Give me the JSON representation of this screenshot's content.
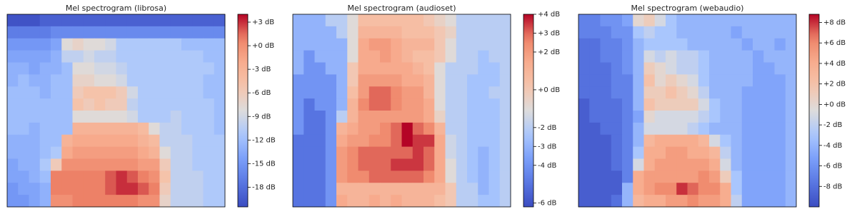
{
  "chart_data": [
    {
      "type": "heatmap",
      "title": "Mel spectrogram (librosa)",
      "colormap": "coolwarm",
      "clim": [
        -20.5,
        4
      ],
      "cticks": [
        {
          "value": 3,
          "label": "+3 dB"
        },
        {
          "value": 0,
          "label": "+0 dB"
        },
        {
          "value": -3,
          "label": "-3 dB"
        },
        {
          "value": -6,
          "label": "-6 dB"
        },
        {
          "value": -9,
          "label": "-9 dB"
        },
        {
          "value": -12,
          "label": "-12 dB"
        },
        {
          "value": -15,
          "label": "-15 dB"
        },
        {
          "value": -18,
          "label": "-18 dB"
        }
      ],
      "z": [
        [
          -20,
          -20,
          -20,
          -19,
          -19,
          -19,
          -19,
          -19,
          -19,
          -19,
          -19,
          -19,
          -19,
          -19,
          -19,
          -19,
          -19,
          -19,
          -19,
          -19
        ],
        [
          -17,
          -17,
          -17,
          -17,
          -16,
          -16,
          -16,
          -16,
          -16,
          -16,
          -16,
          -16,
          -16,
          -16,
          -16,
          -16,
          -16,
          -16,
          -16,
          -16
        ],
        [
          -15,
          -15,
          -15,
          -15,
          -14,
          -8,
          -7,
          -8,
          -8,
          -9,
          -11,
          -11,
          -11,
          -11,
          -11,
          -11,
          -12,
          -12,
          -12,
          -12
        ],
        [
          -14,
          -14,
          -14,
          -14,
          -13,
          -10,
          -10,
          -9,
          -10,
          -10,
          -11,
          -11,
          -11,
          -11,
          -11,
          -11,
          -11,
          -11,
          -12,
          -12
        ],
        [
          -13,
          -13,
          -14,
          -13,
          -13,
          -12,
          -8,
          -8,
          -9,
          -9,
          -10,
          -11,
          -11,
          -11,
          -11,
          -11,
          -11,
          -11,
          -11,
          -12
        ],
        [
          -13,
          -12,
          -13,
          -13,
          -12,
          -12,
          -7,
          -7,
          -8,
          -8,
          -9,
          -11,
          -11,
          -11,
          -11,
          -11,
          -11,
          -11,
          -12,
          -12
        ],
        [
          -12,
          -12,
          -12,
          -13,
          -12,
          -12,
          -6,
          -5,
          -5,
          -5,
          -6,
          -9,
          -11,
          -11,
          -11,
          -11,
          -11,
          -11,
          -12,
          -12
        ],
        [
          -12,
          -12,
          -12,
          -12,
          -12,
          -12,
          -5,
          -6,
          -5,
          -6,
          -6,
          -10,
          -11,
          -11,
          -11,
          -11,
          -11,
          -11,
          -11,
          -12
        ],
        [
          -12,
          -12,
          -12,
          -12,
          -12,
          -12,
          -8,
          -8,
          -8,
          -8,
          -8,
          -9,
          -11,
          -11,
          -11,
          -10,
          -11,
          -11,
          -11,
          -12
        ],
        [
          -12,
          -12,
          -13,
          -12,
          -12,
          -12,
          -3,
          -3,
          -3,
          -3,
          -3,
          -3,
          -4,
          -8,
          -10,
          -10,
          -11,
          -11,
          -11,
          -12
        ],
        [
          -13,
          -13,
          -13,
          -12,
          -12,
          -3,
          -2,
          -2,
          -2,
          -2,
          -2,
          -2,
          -3,
          -4,
          -10,
          -10,
          -10,
          -11,
          -11,
          -11
        ],
        [
          -13,
          -13,
          -13,
          -12,
          -11,
          -2,
          -1,
          -1,
          -1,
          -1,
          -1,
          -1,
          -2,
          -3,
          -8,
          -10,
          -10,
          -11,
          -11,
          -11
        ],
        [
          -14,
          -13,
          -13,
          -11,
          -6,
          0,
          0,
          0,
          0,
          0,
          0,
          0,
          -1,
          -1,
          -6,
          -10,
          -10,
          -11,
          -11,
          -11
        ],
        [
          -14,
          -14,
          -13,
          -12,
          1,
          1,
          1,
          1,
          1,
          2,
          3,
          2,
          1,
          0,
          -5,
          -10,
          -10,
          -10,
          -11,
          -11
        ],
        [
          -15,
          -14,
          -14,
          -13,
          1,
          1,
          1,
          1,
          1,
          2,
          3,
          3,
          2,
          1,
          -6,
          -10,
          -10,
          -10,
          -11,
          -11
        ],
        [
          -15,
          -15,
          -14,
          -13,
          0,
          0,
          1,
          1,
          1,
          1,
          1,
          1,
          0,
          0,
          -7,
          -10,
          -10,
          -10,
          -11,
          -11
        ]
      ]
    },
    {
      "type": "heatmap",
      "title": "Mel spectrogram (audioset)",
      "colormap": "coolwarm",
      "clim": [
        -6.2,
        4
      ],
      "cticks": [
        {
          "value": 4,
          "label": "+4 dB"
        },
        {
          "value": 3,
          "label": "+3 dB"
        },
        {
          "value": 2,
          "label": "+2 dB"
        },
        {
          "value": 0,
          "label": "+0 dB"
        },
        {
          "value": -2,
          "label": "-2 dB"
        },
        {
          "value": -3,
          "label": "-3 dB"
        },
        {
          "value": -4,
          "label": "-4 dB"
        },
        {
          "value": -6,
          "label": "-6 dB"
        }
      ],
      "z": [
        [
          -3,
          -3,
          -3,
          -2,
          -2,
          -1,
          0.5,
          0.5,
          0.5,
          0.5,
          0.5,
          0.5,
          0,
          -0.5,
          -1,
          -2,
          -2,
          -2,
          -2,
          -2
        ],
        [
          -3,
          -3,
          -3,
          -3,
          -2,
          -1,
          1,
          1,
          1,
          1,
          0.5,
          0.5,
          0.5,
          0,
          -0.5,
          -2,
          -2,
          -2,
          -2,
          -2
        ],
        [
          -3,
          -3,
          -3,
          -3,
          -3,
          -1,
          1.5,
          2,
          2,
          1.5,
          1,
          1,
          1,
          0,
          -1,
          -2,
          -2,
          -2,
          -2,
          -2
        ],
        [
          -3,
          -4,
          -3,
          -3,
          -3,
          -1,
          1.5,
          1.5,
          2,
          1.5,
          1,
          0.5,
          0.5,
          0,
          -1,
          -2,
          -2,
          -2.5,
          -2,
          -2
        ],
        [
          -3,
          -4,
          -4,
          -3,
          -3,
          0,
          1.5,
          1.5,
          1.5,
          1.5,
          1.5,
          1,
          0.5,
          -1,
          -2,
          -2,
          -2,
          -2.5,
          -2.5,
          -2
        ],
        [
          -4,
          -4,
          -4,
          -4,
          -3,
          0,
          2,
          2,
          2,
          2,
          1.5,
          1.5,
          1,
          -1,
          -2,
          -2,
          -2.5,
          -2.5,
          -2.5,
          -2
        ],
        [
          -4,
          -4,
          -4,
          -4,
          -3,
          0.5,
          2,
          3,
          3,
          2.5,
          2,
          2,
          1,
          -1,
          -2,
          -2,
          -2.5,
          -2.5,
          -2,
          -2
        ],
        [
          -4,
          -5,
          -4,
          -4,
          -3,
          1,
          2.5,
          3,
          3,
          2.5,
          2,
          2,
          1.5,
          -1,
          -2,
          -2,
          -2.5,
          -2.5,
          -2.5,
          -2
        ],
        [
          -4,
          -5,
          -5,
          -4,
          -2,
          1,
          2,
          2,
          2,
          2,
          2,
          2,
          1.5,
          -0.5,
          -2,
          -2,
          -2.5,
          -2.5,
          -2.5,
          -2
        ],
        [
          -4,
          -5,
          -5,
          -4,
          1,
          1.5,
          2,
          2,
          2.5,
          3,
          4,
          3,
          2.5,
          1,
          -2,
          -2,
          -2.5,
          -2.5,
          -2.5,
          -2
        ],
        [
          -5,
          -5,
          -5,
          -4,
          1.5,
          2,
          2,
          2.5,
          2.5,
          3,
          4,
          3.5,
          3.5,
          1.5,
          -1.5,
          -2,
          -2.5,
          -2.5,
          -2.5,
          -2
        ],
        [
          -5,
          -5,
          -5,
          -4,
          2,
          2.5,
          3,
          3,
          3,
          3,
          3,
          3.5,
          3,
          1.5,
          -1.5,
          -2,
          -2.5,
          -3,
          -2.5,
          -2
        ],
        [
          -5,
          -5,
          -5,
          -4,
          2,
          2.5,
          3,
          3,
          3,
          3.5,
          3.5,
          3.5,
          3,
          1.5,
          -1,
          -2,
          -2.5,
          -3,
          -2.5,
          -2
        ],
        [
          -5,
          -5,
          -5,
          -4,
          2,
          2.5,
          2.5,
          3,
          3,
          3,
          3,
          3,
          2.5,
          1.5,
          -1,
          -2,
          -2.5,
          -3,
          -2.5,
          -2
        ],
        [
          -5,
          -5,
          -5,
          -4,
          1,
          1,
          1,
          1,
          1,
          1,
          1,
          1,
          1,
          1,
          0,
          -2,
          -2,
          -3,
          -2.5,
          -2
        ],
        [
          -5,
          -5,
          -5,
          -4,
          1.5,
          1,
          1,
          1.5,
          1,
          1.5,
          1,
          1,
          1,
          0.5,
          0,
          -2,
          -2,
          -2.5,
          -2.5,
          -2
        ]
      ]
    },
    {
      "type": "heatmap",
      "title": "Mel spectrogram (webaudio)",
      "colormap": "coolwarm",
      "clim": [
        -10,
        8.8
      ],
      "cticks": [
        {
          "value": 8,
          "label": "+8 dB"
        },
        {
          "value": 6,
          "label": "+6 dB"
        },
        {
          "value": 4,
          "label": "+4 dB"
        },
        {
          "value": 2,
          "label": "+2 dB"
        },
        {
          "value": 0,
          "label": "+0 dB"
        },
        {
          "value": -2,
          "label": "-2 dB"
        },
        {
          "value": -4,
          "label": "-4 dB"
        },
        {
          "value": -6,
          "label": "-6 dB"
        },
        {
          "value": -8,
          "label": "-8 dB"
        }
      ],
      "z": [
        [
          -7,
          -7,
          -6,
          -6,
          -5,
          0,
          1,
          -1,
          -3,
          -4,
          -4,
          -4,
          -4,
          -4,
          -4,
          -4,
          -4,
          -4,
          -4,
          -4
        ],
        [
          -7,
          -7,
          -7,
          -6,
          -6,
          -3,
          -2,
          -3,
          -3,
          -4,
          -4,
          -4,
          -4,
          -4,
          -5,
          -4,
          -4,
          -4,
          -4,
          -4
        ],
        [
          -8,
          -8,
          -7,
          -7,
          -6,
          -4,
          -3,
          -3,
          -3,
          -3,
          -4,
          -4,
          -4,
          -4,
          -4,
          -5,
          -4,
          -4,
          -5,
          -4
        ],
        [
          -8,
          -8,
          -7,
          -7,
          -6,
          -4,
          -1,
          -2,
          -1,
          -2,
          -2,
          -3,
          -4,
          -4,
          -4,
          -4,
          -5,
          -4,
          -4,
          -4
        ],
        [
          -8,
          -8,
          -8,
          -7,
          -6,
          -4,
          1,
          0,
          -1,
          -2,
          -2,
          -3,
          -4,
          -4,
          -4,
          -4,
          -5,
          -5,
          -4,
          -4
        ],
        [
          -8,
          -8,
          -8,
          -7,
          -7,
          -4,
          2,
          0,
          1,
          0,
          -1,
          -3,
          -4,
          -4,
          -4,
          -4,
          -5,
          -5,
          -5,
          -4
        ],
        [
          -8,
          -8,
          -8,
          -7,
          -7,
          -4,
          1,
          1,
          2,
          1,
          0,
          -2,
          -4,
          -4,
          -4,
          -5,
          -5,
          -5,
          -5,
          -4
        ],
        [
          -9,
          -8,
          -8,
          -8,
          -7,
          -4,
          2,
          1,
          1,
          1,
          1,
          -1,
          -3,
          -4,
          -4,
          -5,
          -5,
          -5,
          -5,
          -4
        ],
        [
          -9,
          -8,
          -8,
          -8,
          -7,
          -5,
          0,
          -1,
          -1,
          -1,
          -1,
          -2,
          -3,
          -4,
          -4,
          -5,
          -5,
          -5,
          -5,
          -4
        ],
        [
          -9,
          -9,
          -8,
          -8,
          -7,
          -4,
          -1,
          -1,
          -1,
          -1,
          -2,
          -3,
          -4,
          -4,
          -4,
          -5,
          -5,
          -5,
          -5,
          -4
        ],
        [
          -9,
          -9,
          -9,
          -8,
          -7,
          -4,
          3,
          4,
          4,
          4,
          4,
          3,
          -1,
          -3,
          -4,
          -5,
          -5,
          -5,
          -5,
          -4
        ],
        [
          -9,
          -9,
          -9,
          -8,
          -7,
          -3,
          4,
          4,
          5,
          5,
          4,
          4,
          3,
          -2,
          -4,
          -5,
          -5,
          -5,
          -5,
          -4
        ],
        [
          -9,
          -9,
          -9,
          -8,
          -7,
          -1,
          4,
          5,
          5,
          5,
          5,
          5,
          4,
          -1,
          -4,
          -5,
          -5,
          -5,
          -5,
          -4
        ],
        [
          -9,
          -9,
          -9,
          -9,
          -7,
          4,
          5,
          5,
          5,
          5,
          5,
          6,
          5,
          1,
          -3,
          -5,
          -5,
          -5,
          -5,
          -4
        ],
        [
          -9,
          -9,
          -9,
          -9,
          -4,
          4,
          5,
          6,
          6,
          8,
          7,
          6,
          6,
          4,
          -3,
          -5,
          -5,
          -5,
          -5,
          -4
        ],
        [
          -9,
          -9,
          -9,
          -8,
          -4,
          3,
          4,
          4,
          5,
          5,
          6,
          5,
          5,
          4,
          -2,
          -5,
          -5,
          -5,
          -5,
          -4
        ]
      ]
    }
  ]
}
